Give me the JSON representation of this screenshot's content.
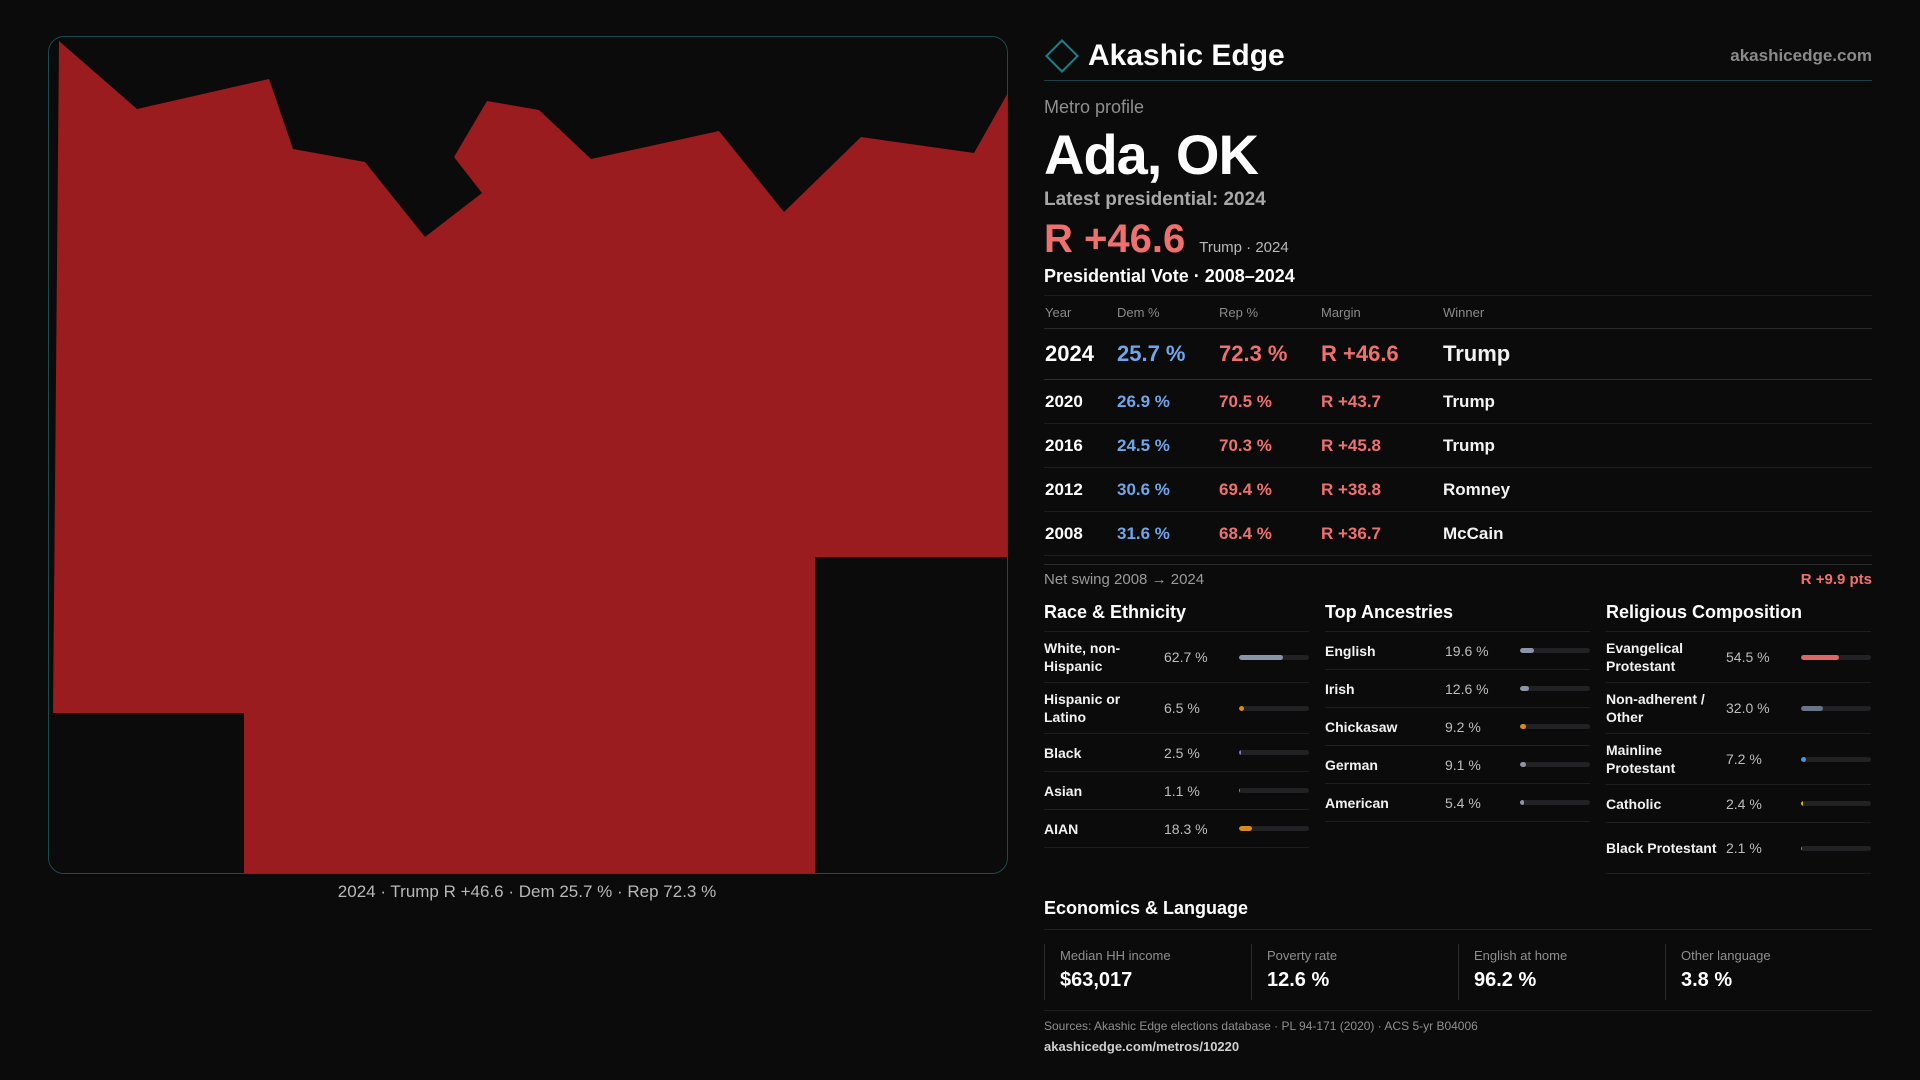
{
  "brand": {
    "name": "Akashic Edge",
    "domain": "akashicedge.com",
    "accent": "#1f7f86"
  },
  "map": {
    "caption": "2024 · Trump R +46.6 · Dem 25.7 % · Rep 72.3 %",
    "fill_color": "#9a1c1f",
    "background": "#0b0b0c"
  },
  "profile": {
    "eyebrow": "Metro profile",
    "title": "Ada, OK",
    "latest": "Latest presidential: 2024",
    "big_margin": "R +46.6",
    "margin_sub": "Trump · 2024"
  },
  "votes": {
    "title": "Presidential Vote · 2008–2024",
    "headers": {
      "year": "Year",
      "dem": "Dem %",
      "rep": "Rep %",
      "margin": "Margin",
      "winner": "Winner"
    },
    "rows": [
      {
        "year": "2024",
        "dem": "25.7 %",
        "rep": "72.3 %",
        "margin": "R +46.6",
        "winner": "Trump"
      },
      {
        "year": "2020",
        "dem": "26.9 %",
        "rep": "70.5 %",
        "margin": "R +43.7",
        "winner": "Trump"
      },
      {
        "year": "2016",
        "dem": "24.5 %",
        "rep": "70.3 %",
        "margin": "R +45.8",
        "winner": "Trump"
      },
      {
        "year": "2012",
        "dem": "30.6 %",
        "rep": "69.4 %",
        "margin": "R +38.8",
        "winner": "Romney"
      },
      {
        "year": "2008",
        "dem": "31.6 %",
        "rep": "68.4 %",
        "margin": "R +36.7",
        "winner": "McCain"
      }
    ],
    "swing_label": "Net swing 2008 → 2024",
    "swing_value": "R +9.9 pts"
  },
  "race": {
    "title": "Race & Ethnicity",
    "items": [
      {
        "label": "White, non-Hispanic",
        "value": "62.7 %",
        "share": 62.7,
        "color": "#8a96a8"
      },
      {
        "label": "Hispanic or Latino",
        "value": "6.5 %",
        "share": 6.5,
        "color": "#d98a1e"
      },
      {
        "label": "Black",
        "value": "2.5 %",
        "share": 2.5,
        "color": "#8a6fd0"
      },
      {
        "label": "Asian",
        "value": "1.1 %",
        "share": 1.1,
        "color": "#4aa0a0"
      },
      {
        "label": "AIAN",
        "value": "18.3 %",
        "share": 18.3,
        "color": "#d98a1e"
      }
    ]
  },
  "ancestry": {
    "title": "Top Ancestries",
    "items": [
      {
        "label": "English",
        "value": "19.6 %",
        "share": 19.6,
        "color": "#8a96a8"
      },
      {
        "label": "Irish",
        "value": "12.6 %",
        "share": 12.6,
        "color": "#8a96a8"
      },
      {
        "label": "Chickasaw",
        "value": "9.2 %",
        "share": 9.2,
        "color": "#d98a1e"
      },
      {
        "label": "German",
        "value": "9.1 %",
        "share": 9.1,
        "color": "#8a96a8"
      },
      {
        "label": "American",
        "value": "5.4 %",
        "share": 5.4,
        "color": "#8a96a8"
      }
    ]
  },
  "religion": {
    "title": "Religious Composition",
    "items": [
      {
        "label": "Evangelical Protestant",
        "value": "54.5 %",
        "share": 54.5,
        "color": "#e06565"
      },
      {
        "label": "Non-adherent / Other",
        "value": "32.0 %",
        "share": 32.0,
        "color": "#6a7585"
      },
      {
        "label": "Mainline Protestant",
        "value": "7.2 %",
        "share": 7.2,
        "color": "#5a8ee0"
      },
      {
        "label": "Catholic",
        "value": "2.4 %",
        "share": 2.4,
        "color": "#d9b21e"
      },
      {
        "label": "Black Protestant",
        "value": "2.1 %",
        "share": 2.1,
        "color": "#8a6fd0"
      }
    ]
  },
  "economics": {
    "title": "Economics & Language",
    "items": [
      {
        "label": "Median HH income",
        "value": "$63,017"
      },
      {
        "label": "Poverty rate",
        "value": "12.6 %"
      },
      {
        "label": "English at home",
        "value": "96.2 %"
      },
      {
        "label": "Other language",
        "value": "3.8 %"
      }
    ]
  },
  "footer": {
    "sources": "Sources: Akashic Edge elections database · PL 94-171 (2020) · ACS 5-yr B04006",
    "url": "akashicedge.com/metros/10220"
  }
}
